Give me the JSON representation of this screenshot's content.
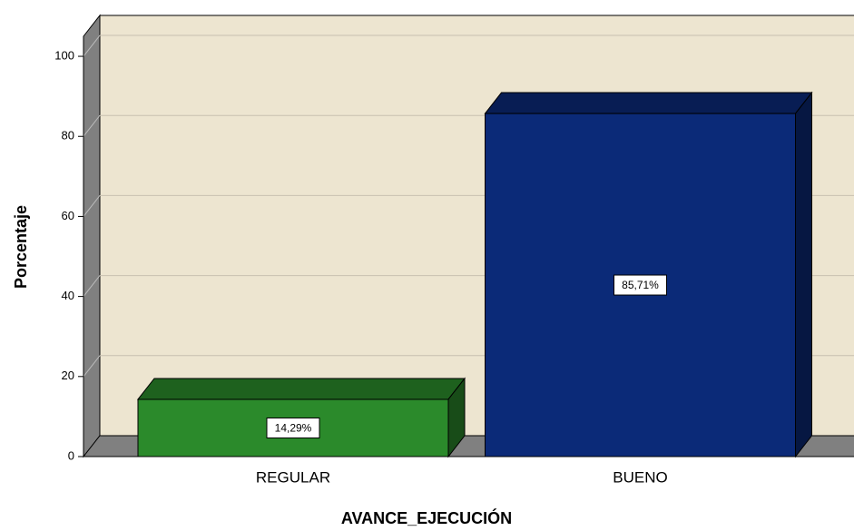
{
  "chart_data": {
    "type": "bar3d",
    "x_label": "AVANCE_EJECUCIÓN",
    "y_label": "Porcentaje",
    "categories": [
      "REGULAR",
      "BUENO"
    ],
    "values": [
      14.29,
      85.71
    ],
    "value_labels": [
      "14,29%",
      "85,71%"
    ],
    "colors": [
      "#2b8a2b",
      "#0b2a78"
    ],
    "ylim": [
      0,
      105
    ],
    "yticks": [
      0,
      20,
      40,
      60,
      80,
      100
    ],
    "grid": true
  }
}
